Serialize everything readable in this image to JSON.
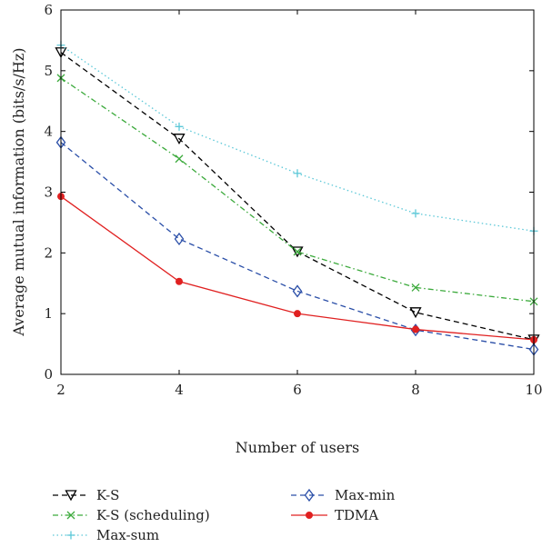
{
  "chart_data": {
    "type": "line",
    "xlabel": "Number of users",
    "ylabel": "Average mutual information (bits/s/Hz)",
    "xlim": [
      2,
      10
    ],
    "ylim": [
      0,
      6
    ],
    "xticks": [
      "2",
      "4",
      "6",
      "8",
      "10"
    ],
    "yticks": [
      "0",
      "1",
      "2",
      "3",
      "4",
      "5",
      "6"
    ],
    "grid": false,
    "legend_position": "bottom",
    "x": [
      2,
      4,
      6,
      8,
      10
    ],
    "series": [
      {
        "name": "K-S",
        "values": [
          5.3,
          3.88,
          2.02,
          1.02,
          0.57
        ],
        "color": "#000000",
        "dash": "6,4",
        "marker": "triangle-down"
      },
      {
        "name": "K-S (scheduling)",
        "values": [
          4.88,
          3.55,
          2.02,
          1.43,
          1.2
        ],
        "color": "#3caa3c",
        "dash": "6,3,1.5,3",
        "marker": "x"
      },
      {
        "name": "Max-sum",
        "values": [
          5.42,
          4.08,
          3.31,
          2.65,
          2.36
        ],
        "color": "#5cc8d8",
        "dash": "1.5,3",
        "marker": "plus"
      },
      {
        "name": "Max-min",
        "values": [
          3.82,
          2.23,
          1.37,
          0.73,
          0.41
        ],
        "color": "#2b4fa8",
        "dash": "6,4",
        "marker": "diamond"
      },
      {
        "name": "TDMA",
        "values": [
          2.93,
          1.53,
          1.0,
          0.74,
          0.57
        ],
        "color": "#e02020",
        "dash": "",
        "marker": "dot"
      }
    ]
  }
}
